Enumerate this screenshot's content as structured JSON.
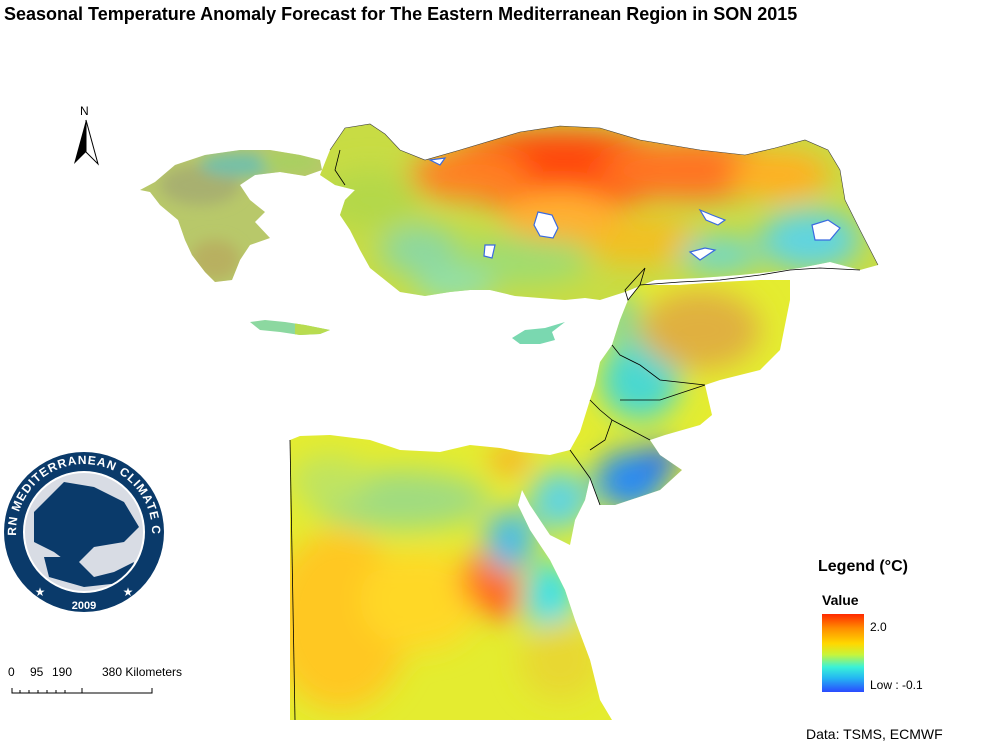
{
  "title": "Seasonal Temperature Anomaly Forecast for The Eastern Mediterranean Region in SON 2015",
  "north_arrow": {
    "label": "N",
    "icon": "north-arrow-icon"
  },
  "legend": {
    "title": "Legend (°C)",
    "subtitle": "Value",
    "high_label": "2.0",
    "low_label": "Low : -0.1",
    "colors": [
      "#ff2a00",
      "#ff8c00",
      "#ffd800",
      "#c8f43a",
      "#3af2d8",
      "#24b8f2",
      "#2a4aff"
    ]
  },
  "scale_bar": {
    "labels": [
      "0",
      "95",
      "190",
      "380 Kilometers"
    ]
  },
  "logo": {
    "text": "EASTERN MEDITERRANEAN CLIMATE CENTRE",
    "year": "2009",
    "icon": "emcc-logo"
  },
  "source": "Data: TSMS, ECMWF",
  "chart_data": {
    "type": "heatmap",
    "title": "Seasonal Temperature Anomaly Forecast for The Eastern Mediterranean Region in SON 2015",
    "colorbar_label": "Value",
    "value_range": [
      -0.1,
      2.0
    ]
  }
}
